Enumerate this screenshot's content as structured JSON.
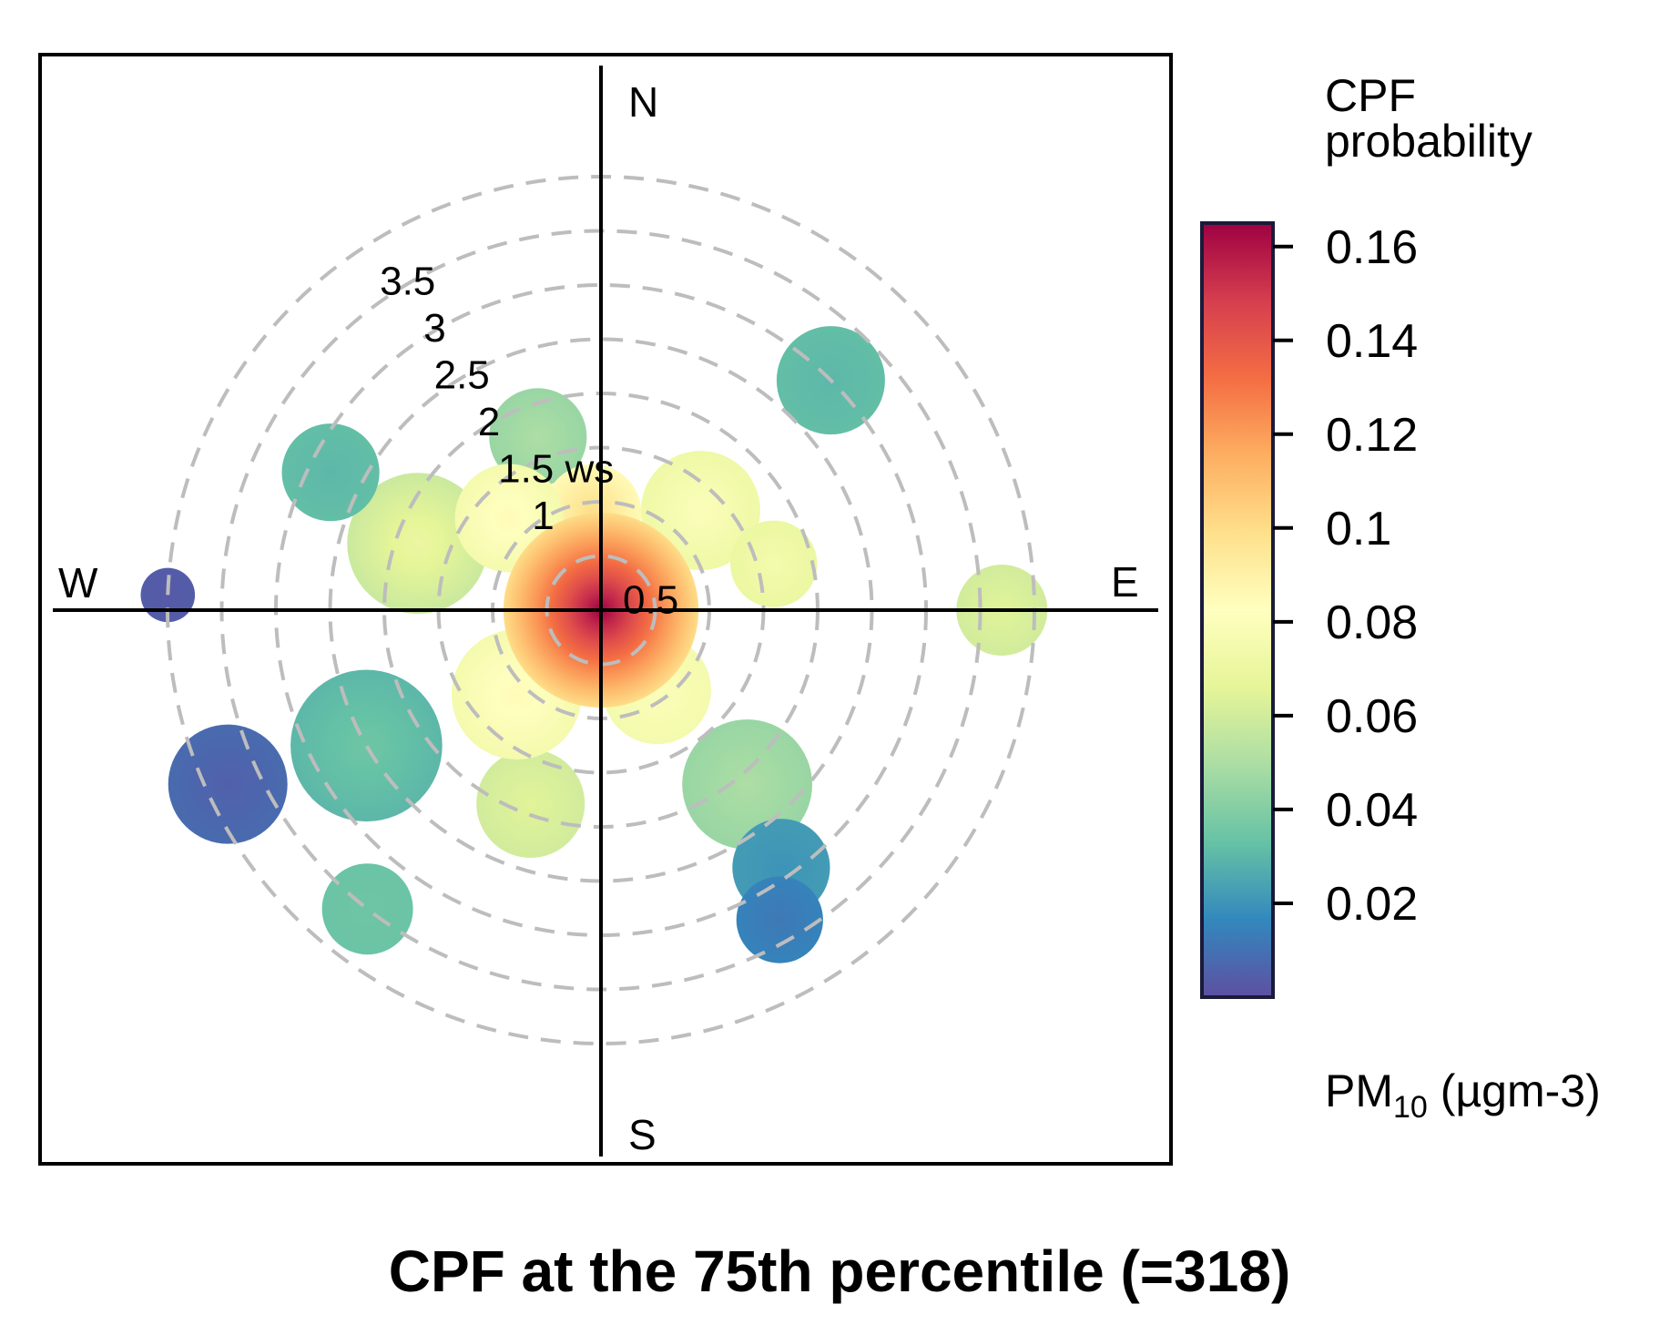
{
  "chart_data": {
    "type": "polar-plot",
    "title": "CPF at the 75th percentile (=318)",
    "radial_variable": "ws",
    "radial_ticks": [
      {
        "value": 0.5,
        "label": "0.5"
      },
      {
        "value": 1,
        "label": "1"
      },
      {
        "value": 1.5,
        "label": "1.5"
      },
      {
        "value": 2,
        "label": "2"
      },
      {
        "value": 2.5,
        "label": "2.5"
      },
      {
        "value": 3,
        "label": "3"
      },
      {
        "value": 3.5,
        "label": "3.5"
      }
    ],
    "radial_axis_label": "ws",
    "radial_max": 3.9,
    "directions": {
      "north": "N",
      "south": "S",
      "east": "E",
      "west": "W"
    },
    "colorbar": {
      "title_line1": "CPF",
      "title_line2": "probability",
      "range": [
        0.0,
        0.165
      ],
      "ticks": [
        {
          "value": 0.16,
          "label": "0.16"
        },
        {
          "value": 0.14,
          "label": "0.14"
        },
        {
          "value": 0.12,
          "label": "0.12"
        },
        {
          "value": 0.1,
          "label": "0.1"
        },
        {
          "value": 0.08,
          "label": "0.08"
        },
        {
          "value": 0.06,
          "label": "0.06"
        },
        {
          "value": 0.04,
          "label": "0.04"
        },
        {
          "value": 0.02,
          "label": "0.02"
        }
      ],
      "pollutant_main": "PM",
      "pollutant_sub": "10",
      "pollutant_units": " (µgm-3)",
      "palette": [
        "#5E4FA2",
        "#3288BD",
        "#66C2A5",
        "#ABDDA4",
        "#E6F598",
        "#FFFFBF",
        "#FEE08B",
        "#FDAE61",
        "#F46D43",
        "#D53E4F",
        "#9E0142"
      ]
    },
    "blobs": [
      {
        "name": "center",
        "angle_deg": 0,
        "ws": 0.0,
        "r_ws": 0.9,
        "cpf": 0.165,
        "edge_cpf": 0.1
      },
      {
        "name": "north-upper",
        "angle_deg": -20,
        "ws": 1.7,
        "r_ws": 0.45,
        "cpf": 0.05,
        "edge_cpf": 0.045
      },
      {
        "name": "north-near",
        "angle_deg": -5,
        "ws": 0.9,
        "r_ws": 0.45,
        "cpf": 0.1,
        "edge_cpf": 0.085
      },
      {
        "name": "ne-far",
        "angle_deg": 45,
        "ws": 3.0,
        "r_ws": 0.5,
        "cpf": 0.03,
        "edge_cpf": 0.032
      },
      {
        "name": "ne-mid",
        "angle_deg": 45,
        "ws": 1.3,
        "r_ws": 0.55,
        "cpf": 0.08,
        "edge_cpf": 0.072
      },
      {
        "name": "east-mid",
        "angle_deg": 75,
        "ws": 1.65,
        "r_ws": 0.4,
        "cpf": 0.075,
        "edge_cpf": 0.07
      },
      {
        "name": "east-far",
        "angle_deg": 90,
        "ws": 3.7,
        "r_ws": 0.42,
        "cpf": 0.065,
        "edge_cpf": 0.06
      },
      {
        "name": "se-near",
        "angle_deg": 145,
        "ws": 0.9,
        "r_ws": 0.5,
        "cpf": 0.08,
        "edge_cpf": 0.075
      },
      {
        "name": "se-mid",
        "angle_deg": 140,
        "ws": 2.1,
        "r_ws": 0.6,
        "cpf": 0.05,
        "edge_cpf": 0.045
      },
      {
        "name": "se-far",
        "angle_deg": 145,
        "ws": 2.9,
        "r_ws": 0.45,
        "cpf": 0.02,
        "edge_cpf": 0.022
      },
      {
        "name": "se-farthest",
        "angle_deg": 150,
        "ws": 3.3,
        "r_ws": 0.4,
        "cpf": 0.012,
        "edge_cpf": 0.015
      },
      {
        "name": "south-mid",
        "angle_deg": 200,
        "ws": 1.9,
        "r_ws": 0.5,
        "cpf": 0.065,
        "edge_cpf": 0.06
      },
      {
        "name": "sw-near",
        "angle_deg": 225,
        "ws": 1.1,
        "r_ws": 0.6,
        "cpf": 0.085,
        "edge_cpf": 0.075
      },
      {
        "name": "sw-mid",
        "angle_deg": 240,
        "ws": 2.5,
        "r_ws": 0.7,
        "cpf": 0.035,
        "edge_cpf": 0.03
      },
      {
        "name": "sw-far-lower",
        "angle_deg": 218,
        "ws": 3.5,
        "r_ws": 0.42,
        "cpf": 0.035,
        "edge_cpf": 0.034
      },
      {
        "name": "wsw-far",
        "angle_deg": 245,
        "ws": 3.8,
        "r_ws": 0.55,
        "cpf": 0.005,
        "edge_cpf": 0.008
      },
      {
        "name": "west-edge",
        "angle_deg": 272,
        "ws": 4.0,
        "r_ws": 0.25,
        "cpf": 0.003,
        "edge_cpf": 0.004
      },
      {
        "name": "wnw-mid",
        "angle_deg": 290,
        "ws": 1.8,
        "r_ws": 0.65,
        "cpf": 0.07,
        "edge_cpf": 0.058
      },
      {
        "name": "wnw-far",
        "angle_deg": 297,
        "ws": 2.8,
        "r_ws": 0.45,
        "cpf": 0.03,
        "edge_cpf": 0.032
      },
      {
        "name": "nw-near",
        "angle_deg": 315,
        "ws": 1.2,
        "r_ws": 0.5,
        "cpf": 0.085,
        "edge_cpf": 0.075
      }
    ]
  }
}
